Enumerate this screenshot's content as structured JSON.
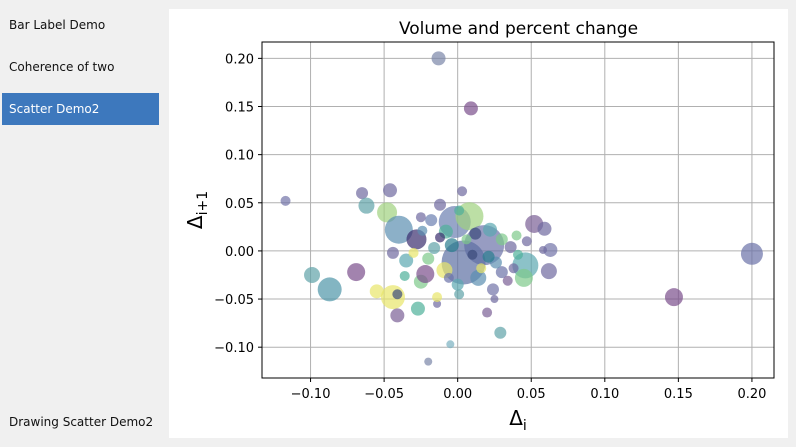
{
  "sidebar": {
    "items": [
      {
        "label": "Bar Label Demo",
        "active": false
      },
      {
        "label": "Coherence of two signals",
        "active": false
      },
      {
        "label": "Scatter Demo2",
        "active": true
      }
    ],
    "status": "Drawing Scatter Demo2"
  },
  "colors": {
    "accent": "#3d78bd"
  },
  "chart_data": {
    "type": "scatter",
    "title": "Volume and percent change",
    "xlabel": "Δi",
    "ylabel": "Δi+1",
    "xlim": [
      -0.133,
      0.215
    ],
    "ylim": [
      -0.132,
      0.217
    ],
    "xticks": [
      -0.1,
      -0.05,
      0.0,
      0.05,
      0.1,
      0.15,
      0.2
    ],
    "xtick_labels": [
      "−0.10",
      "−0.05",
      "0.00",
      "0.05",
      "0.10",
      "0.15",
      "0.20"
    ],
    "yticks": [
      -0.1,
      -0.05,
      0.0,
      0.05,
      0.1,
      0.15,
      0.2
    ],
    "ytick_labels": [
      "−0.10",
      "−0.05",
      "0.00",
      "0.05",
      "0.10",
      "0.15",
      "0.20"
    ],
    "grid": true,
    "points": [
      {
        "x": -0.013,
        "y": 0.2,
        "s": 7,
        "c": "#7a86a8"
      },
      {
        "x": 0.009,
        "y": 0.148,
        "s": 7,
        "c": "#7a4f8c"
      },
      {
        "x": -0.117,
        "y": 0.052,
        "s": 5,
        "c": "#7274a8"
      },
      {
        "x": -0.065,
        "y": 0.06,
        "s": 6,
        "c": "#6f6aa0"
      },
      {
        "x": -0.046,
        "y": 0.063,
        "s": 7,
        "c": "#6f6aa0"
      },
      {
        "x": -0.062,
        "y": 0.047,
        "s": 8,
        "c": "#5fa3a8"
      },
      {
        "x": -0.048,
        "y": 0.04,
        "s": 10,
        "c": "#9fd27f"
      },
      {
        "x": 0.003,
        "y": 0.062,
        "s": 5,
        "c": "#6f6aa0"
      },
      {
        "x": -0.012,
        "y": 0.048,
        "s": 6,
        "c": "#6f6aa0"
      },
      {
        "x": -0.04,
        "y": 0.022,
        "s": 14,
        "c": "#5b8fb0"
      },
      {
        "x": -0.028,
        "y": 0.012,
        "s": 10,
        "c": "#3a2d6e"
      },
      {
        "x": -0.002,
        "y": 0.03,
        "s": 16,
        "c": "#6b7fb0"
      },
      {
        "x": 0.008,
        "y": 0.036,
        "s": 14,
        "c": "#9fd27f"
      },
      {
        "x": 0.018,
        "y": 0.006,
        "s": 20,
        "c": "#6b72a8"
      },
      {
        "x": 0.004,
        "y": -0.012,
        "s": 22,
        "c": "#5c6fa3"
      },
      {
        "x": 0.03,
        "y": 0.012,
        "s": 6,
        "c": "#7ec98a"
      },
      {
        "x": 0.052,
        "y": 0.028,
        "s": 9,
        "c": "#7a5f95"
      },
      {
        "x": 0.059,
        "y": 0.023,
        "s": 7,
        "c": "#6f6aa0"
      },
      {
        "x": 0.047,
        "y": 0.01,
        "s": 5,
        "c": "#6f6aa0"
      },
      {
        "x": 0.063,
        "y": 0.001,
        "s": 7,
        "c": "#7274a8"
      },
      {
        "x": 0.058,
        "y": 0.001,
        "s": 4,
        "c": "#6f6aa0"
      },
      {
        "x": 0.046,
        "y": -0.015,
        "s": 13,
        "c": "#5ba8b0"
      },
      {
        "x": 0.045,
        "y": -0.028,
        "s": 9,
        "c": "#7ec98a"
      },
      {
        "x": 0.062,
        "y": -0.021,
        "s": 8,
        "c": "#6f6aa0"
      },
      {
        "x": 0.038,
        "y": -0.018,
        "s": 5,
        "c": "#6f6aa0"
      },
      {
        "x": 0.2,
        "y": -0.003,
        "s": 11,
        "c": "#6b72a8"
      },
      {
        "x": 0.147,
        "y": -0.048,
        "s": 9,
        "c": "#7a4f8c"
      },
      {
        "x": -0.099,
        "y": -0.025,
        "s": 8,
        "c": "#5fa3a8"
      },
      {
        "x": -0.087,
        "y": -0.04,
        "s": 12,
        "c": "#4e95a8"
      },
      {
        "x": -0.069,
        "y": -0.022,
        "s": 9,
        "c": "#7a4f8c"
      },
      {
        "x": -0.055,
        "y": -0.042,
        "s": 7,
        "c": "#e8e66a"
      },
      {
        "x": -0.044,
        "y": -0.048,
        "s": 12,
        "c": "#e8e66a"
      },
      {
        "x": -0.041,
        "y": -0.045,
        "s": 5,
        "c": "#3a4a7a"
      },
      {
        "x": -0.041,
        "y": -0.067,
        "s": 7,
        "c": "#7a5f95"
      },
      {
        "x": -0.027,
        "y": -0.06,
        "s": 7,
        "c": "#4fb09a"
      },
      {
        "x": -0.014,
        "y": -0.055,
        "s": 4,
        "c": "#6f6aa0"
      },
      {
        "x": -0.014,
        "y": -0.048,
        "s": 5,
        "c": "#e8e66a"
      },
      {
        "x": -0.025,
        "y": -0.032,
        "s": 7,
        "c": "#7ec98a"
      },
      {
        "x": -0.022,
        "y": -0.024,
        "s": 9,
        "c": "#7a4f8c"
      },
      {
        "x": -0.035,
        "y": -0.01,
        "s": 7,
        "c": "#5ba8b0"
      },
      {
        "x": -0.044,
        "y": -0.002,
        "s": 6,
        "c": "#6f6aa0"
      },
      {
        "x": -0.009,
        "y": -0.02,
        "s": 8,
        "c": "#e8e66a"
      },
      {
        "x": 0.0,
        "y": -0.035,
        "s": 6,
        "c": "#5ba8b0"
      },
      {
        "x": 0.001,
        "y": -0.045,
        "s": 5,
        "c": "#5fa3a8"
      },
      {
        "x": 0.014,
        "y": -0.028,
        "s": 8,
        "c": "#5b8fb0"
      },
      {
        "x": 0.024,
        "y": -0.04,
        "s": 6,
        "c": "#7274a8"
      },
      {
        "x": 0.03,
        "y": -0.022,
        "s": 6,
        "c": "#6b72a8"
      },
      {
        "x": 0.025,
        "y": -0.05,
        "s": 4,
        "c": "#6f6aa0"
      },
      {
        "x": 0.02,
        "y": -0.064,
        "s": 5,
        "c": "#7a5f95"
      },
      {
        "x": 0.029,
        "y": -0.085,
        "s": 6,
        "c": "#5fa3a8"
      },
      {
        "x": -0.005,
        "y": -0.097,
        "s": 4,
        "c": "#7ab0c0"
      },
      {
        "x": -0.02,
        "y": -0.115,
        "s": 4,
        "c": "#7a86a8"
      },
      {
        "x": -0.018,
        "y": 0.032,
        "s": 6,
        "c": "#6b7fb0"
      },
      {
        "x": -0.025,
        "y": 0.035,
        "s": 5,
        "c": "#6f6aa0"
      },
      {
        "x": -0.008,
        "y": 0.02,
        "s": 7,
        "c": "#4fb09a"
      },
      {
        "x": 0.012,
        "y": 0.018,
        "s": 6,
        "c": "#3a4a7a"
      },
      {
        "x": 0.022,
        "y": 0.022,
        "s": 7,
        "c": "#5ba8b0"
      },
      {
        "x": 0.036,
        "y": 0.004,
        "s": 6,
        "c": "#6f6aa0"
      },
      {
        "x": -0.016,
        "y": 0.003,
        "s": 6,
        "c": "#5fa3a8"
      },
      {
        "x": -0.004,
        "y": 0.006,
        "s": 7,
        "c": "#2a7e8e"
      },
      {
        "x": 0.01,
        "y": -0.004,
        "s": 5,
        "c": "#3a4a7a"
      },
      {
        "x": -0.03,
        "y": -0.002,
        "s": 5,
        "c": "#e8e66a"
      },
      {
        "x": -0.02,
        "y": -0.008,
        "s": 6,
        "c": "#7ec98a"
      },
      {
        "x": 0.026,
        "y": -0.012,
        "s": 6,
        "c": "#5b8fb0"
      },
      {
        "x": 0.041,
        "y": -0.004,
        "s": 5,
        "c": "#4fb09a"
      },
      {
        "x": 0.006,
        "y": 0.012,
        "s": 5,
        "c": "#7ec98a"
      },
      {
        "x": -0.012,
        "y": 0.014,
        "s": 5,
        "c": "#3a2d6e"
      },
      {
        "x": 0.016,
        "y": -0.018,
        "s": 5,
        "c": "#e8e66a"
      },
      {
        "x": -0.036,
        "y": -0.026,
        "s": 5,
        "c": "#4fb09a"
      },
      {
        "x": 0.034,
        "y": -0.031,
        "s": 5,
        "c": "#7a5f95"
      },
      {
        "x": 0.04,
        "y": 0.016,
        "s": 5,
        "c": "#7ec98a"
      },
      {
        "x": -0.006,
        "y": -0.028,
        "s": 5,
        "c": "#6b72a8"
      },
      {
        "x": 0.021,
        "y": -0.006,
        "s": 6,
        "c": "#2a7e8e"
      },
      {
        "x": -0.024,
        "y": 0.021,
        "s": 5,
        "c": "#5b8fb0"
      },
      {
        "x": 0.001,
        "y": 0.042,
        "s": 5,
        "c": "#4fb09a"
      }
    ]
  }
}
